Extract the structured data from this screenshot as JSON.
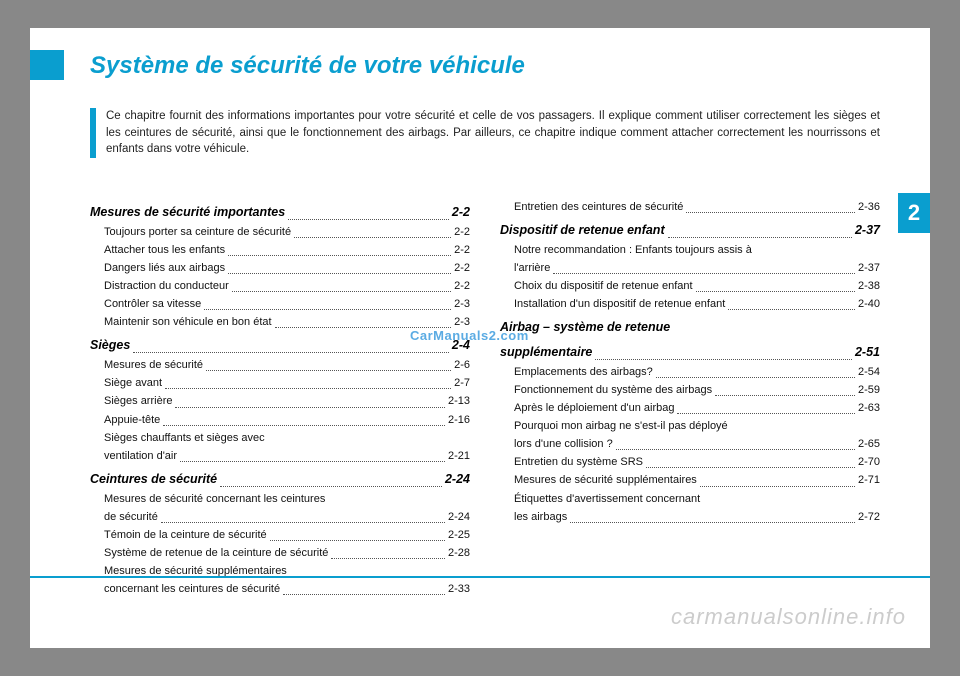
{
  "title": "Système de sécurité de votre véhicule",
  "chapter_number": "2",
  "intro": "Ce chapitre fournit des informations importantes pour votre sécurité et celle de vos passagers. Il explique comment utiliser correctement les sièges et les ceintures de sécurité, ainsi que le fonctionnement des airbags. Par ailleurs, ce chapitre indique comment attacher correctement les nourrissons et enfants dans votre véhicule.",
  "watermark_center": "CarManuals2.com",
  "watermark_bottom": "carmanualsonline.info",
  "colors": {
    "accent": "#0a9ecf",
    "text": "#111",
    "watermark_blue": "#4aa3e0",
    "watermark_grey": "#ccc"
  },
  "left_col": [
    {
      "type": "head",
      "label": "Mesures de sécurité importantes",
      "page": "2-2"
    },
    {
      "type": "sub",
      "label": "Toujours porter sa ceinture de sécurité",
      "page": "2-2"
    },
    {
      "type": "sub",
      "label": "Attacher tous les enfants",
      "page": "2-2"
    },
    {
      "type": "sub",
      "label": "Dangers liés aux airbags",
      "page": "2-2"
    },
    {
      "type": "sub",
      "label": "Distraction du conducteur",
      "page": "2-2"
    },
    {
      "type": "sub",
      "label": "Contrôler sa vitesse",
      "page": "2-3"
    },
    {
      "type": "sub",
      "label": "Maintenir son véhicule en bon état",
      "page": "2-3"
    },
    {
      "type": "head",
      "label": "Sièges",
      "page": "2-4"
    },
    {
      "type": "sub",
      "label": "Mesures de sécurité",
      "page": "2-6"
    },
    {
      "type": "sub",
      "label": "Siège avant",
      "page": "2-7"
    },
    {
      "type": "sub",
      "label": "Sièges arrière",
      "page": "2-13"
    },
    {
      "type": "sub",
      "label": "Appuie-tête",
      "page": "2-16"
    },
    {
      "type": "sub-text",
      "label": "Sièges chauffants et sièges avec"
    },
    {
      "type": "sub",
      "label": "ventilation d'air",
      "page": "2-21"
    },
    {
      "type": "head",
      "label": "Ceintures de sécurité",
      "page": "2-24"
    },
    {
      "type": "sub-text",
      "label": "Mesures de sécurité concernant les ceintures"
    },
    {
      "type": "sub",
      "label": "de sécurité",
      "page": "2-24"
    },
    {
      "type": "sub",
      "label": "Témoin de la ceinture de sécurité",
      "page": "2-25"
    },
    {
      "type": "sub",
      "label": "Système de retenue de la ceinture de sécurité",
      "page": "2-28"
    },
    {
      "type": "sub-text",
      "label": "Mesures de sécurité supplémentaires"
    },
    {
      "type": "sub",
      "label": "concernant les ceintures de sécurité",
      "page": "2-33"
    }
  ],
  "right_col": [
    {
      "type": "sub",
      "label": "Entretien des ceintures de sécurité",
      "page": "2-36"
    },
    {
      "type": "head",
      "label": "Dispositif de retenue enfant",
      "page": "2-37"
    },
    {
      "type": "sub-text",
      "label": "Notre recommandation : Enfants toujours assis à"
    },
    {
      "type": "sub",
      "label": "l'arrière",
      "page": "2-37"
    },
    {
      "type": "sub",
      "label": "Choix du dispositif de retenue enfant",
      "page": "2-38"
    },
    {
      "type": "sub",
      "label": "Installation d'un dispositif de retenue enfant",
      "page": "2-40"
    },
    {
      "type": "head-text",
      "label": "Airbag – système de retenue"
    },
    {
      "type": "head",
      "label": "supplémentaire",
      "page": "2-51"
    },
    {
      "type": "sub",
      "label": "Emplacements des airbags?",
      "page": "2-54"
    },
    {
      "type": "sub",
      "label": "Fonctionnement du système des airbags",
      "page": "2-59"
    },
    {
      "type": "sub",
      "label": "Après le déploiement d'un airbag",
      "page": "2-63"
    },
    {
      "type": "sub-text",
      "label": "Pourquoi mon airbag ne s'est-il pas déployé"
    },
    {
      "type": "sub",
      "label": "lors d'une collision ?",
      "page": "2-65"
    },
    {
      "type": "sub",
      "label": "Entretien du système SRS",
      "page": "2-70"
    },
    {
      "type": "sub",
      "label": "Mesures de sécurité supplémentaires",
      "page": "2-71"
    },
    {
      "type": "sub-text",
      "label": "Étiquettes d'avertissement concernant"
    },
    {
      "type": "sub",
      "label": "les airbags",
      "page": "2-72"
    }
  ]
}
